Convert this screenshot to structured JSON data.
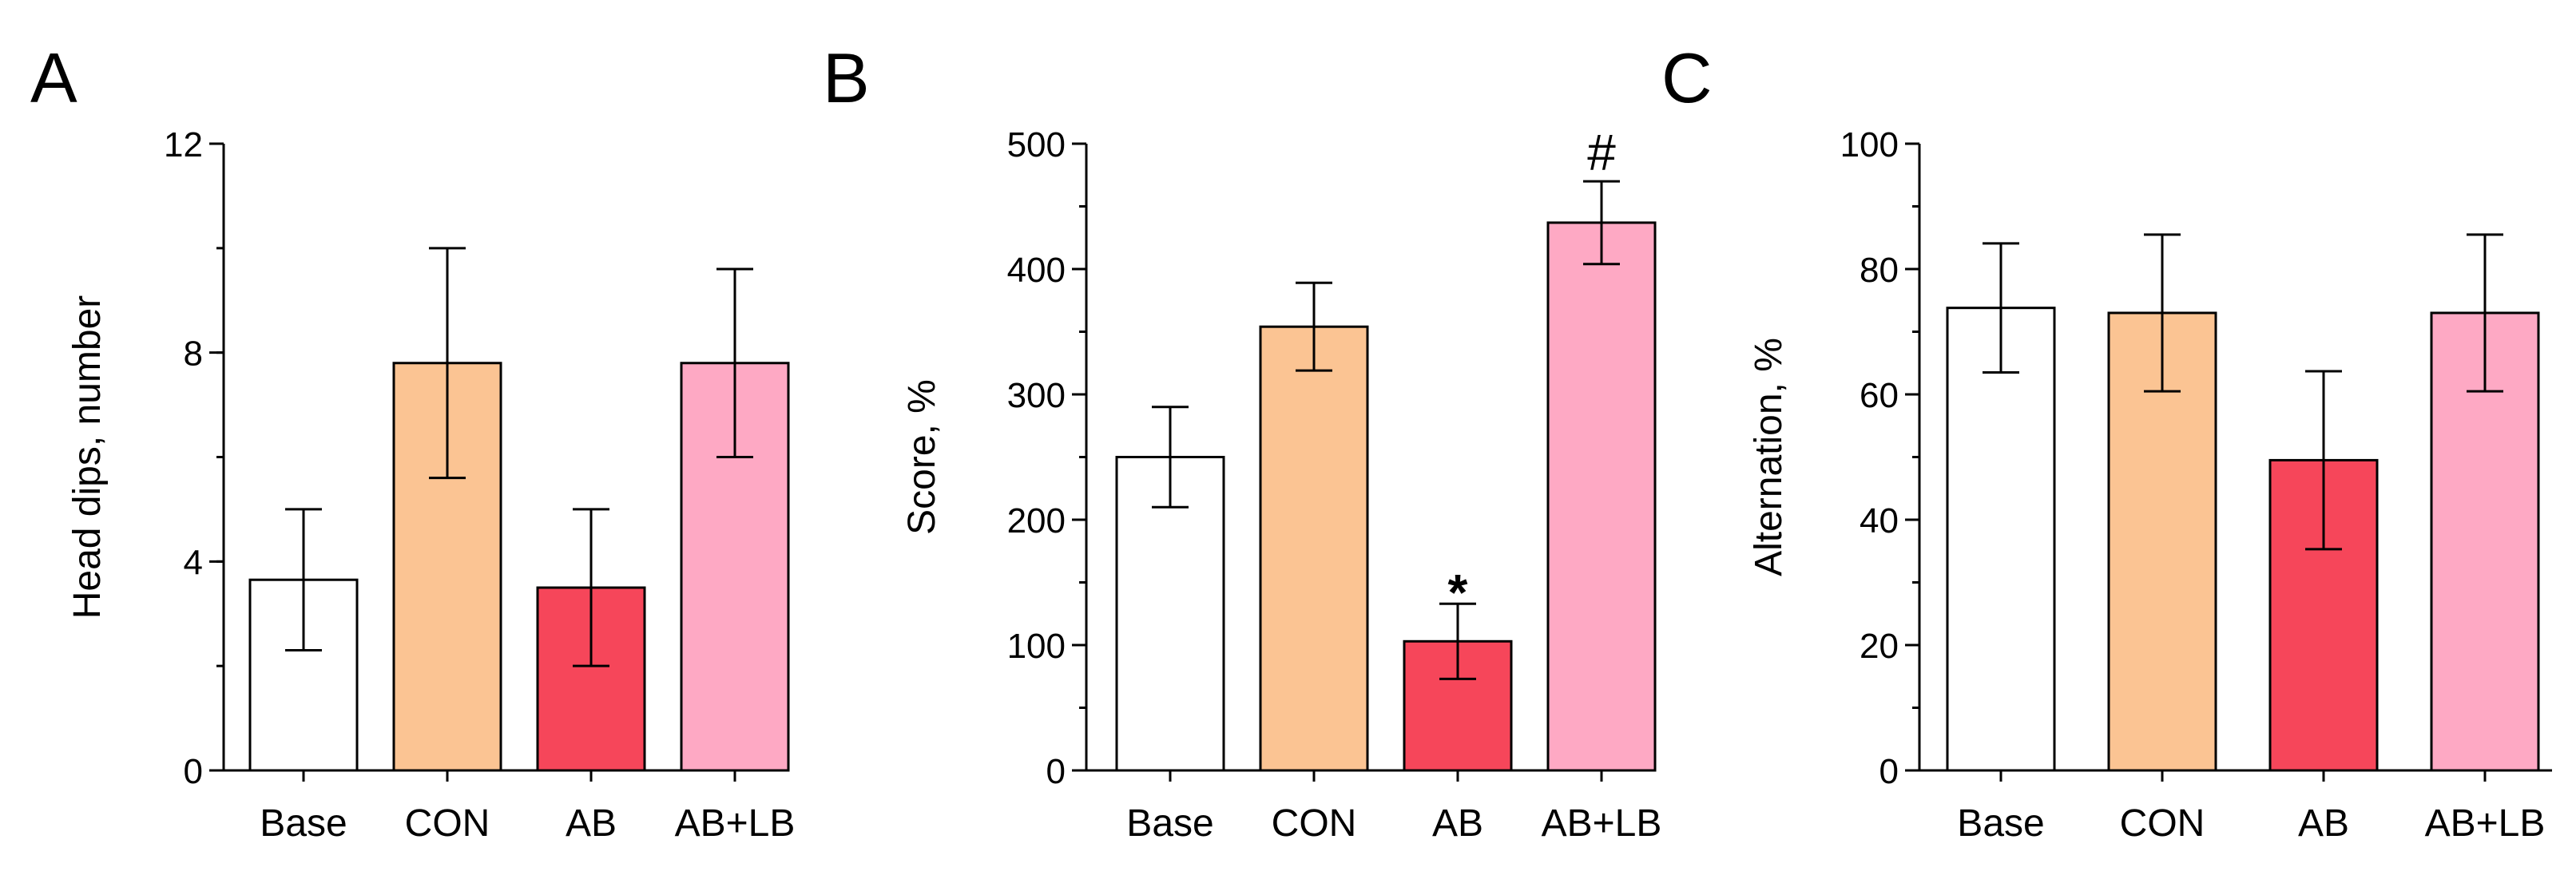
{
  "chart_data": [
    {
      "type": "bar",
      "panel": "A",
      "title": "",
      "xlabel": "",
      "ylabel": "Head dips, number",
      "ylim": [
        0,
        12
      ],
      "yticks": [
        0,
        4,
        8,
        12
      ],
      "ytick_labels": [
        "0",
        "4",
        "8",
        "12"
      ],
      "minor_step": 2,
      "categories": [
        "Base",
        "CON",
        "AB",
        "AB+LB"
      ],
      "values": [
        3.65,
        7.8,
        3.5,
        7.8
      ],
      "errors": [
        1.35,
        2.2,
        1.5,
        1.8
      ],
      "colors": [
        "#ffffff",
        "#fbc493",
        "#f6465a",
        "#fea9c4"
      ],
      "annotations": [
        "",
        "",
        "",
        ""
      ]
    },
    {
      "type": "bar",
      "panel": "B",
      "title": "",
      "xlabel": "",
      "ylabel": "Score, %",
      "ylim": [
        0,
        500
      ],
      "yticks": [
        0,
        100,
        200,
        300,
        400,
        500
      ],
      "ytick_labels": [
        "0",
        "100",
        "200",
        "300",
        "400",
        "500"
      ],
      "minor_step": 50,
      "categories": [
        "Base",
        "CON",
        "AB",
        "AB+LB"
      ],
      "values": [
        250,
        354,
        103,
        437
      ],
      "errors": [
        40,
        35,
        30,
        33
      ],
      "colors": [
        "#ffffff",
        "#fbc493",
        "#f6465a",
        "#fea9c4"
      ],
      "annotations": [
        "",
        "",
        "*",
        "#"
      ]
    },
    {
      "type": "bar",
      "panel": "C",
      "title": "",
      "xlabel": "",
      "ylabel": "Alternation, %",
      "ylim": [
        0,
        100
      ],
      "yticks": [
        0,
        20,
        40,
        60,
        80,
        100
      ],
      "ytick_labels": [
        "0",
        "20",
        "40",
        "60",
        "80",
        "100"
      ],
      "minor_step": 10,
      "categories": [
        "Base",
        "CON",
        "AB",
        "AB+LB"
      ],
      "values": [
        73.8,
        73,
        49.5,
        73
      ],
      "errors": [
        10.3,
        12.5,
        14.2,
        12.5
      ],
      "colors": [
        "#ffffff",
        "#fbc493",
        "#f6465a",
        "#fea9c4"
      ],
      "annotations": [
        "",
        "",
        "",
        ""
      ]
    }
  ]
}
